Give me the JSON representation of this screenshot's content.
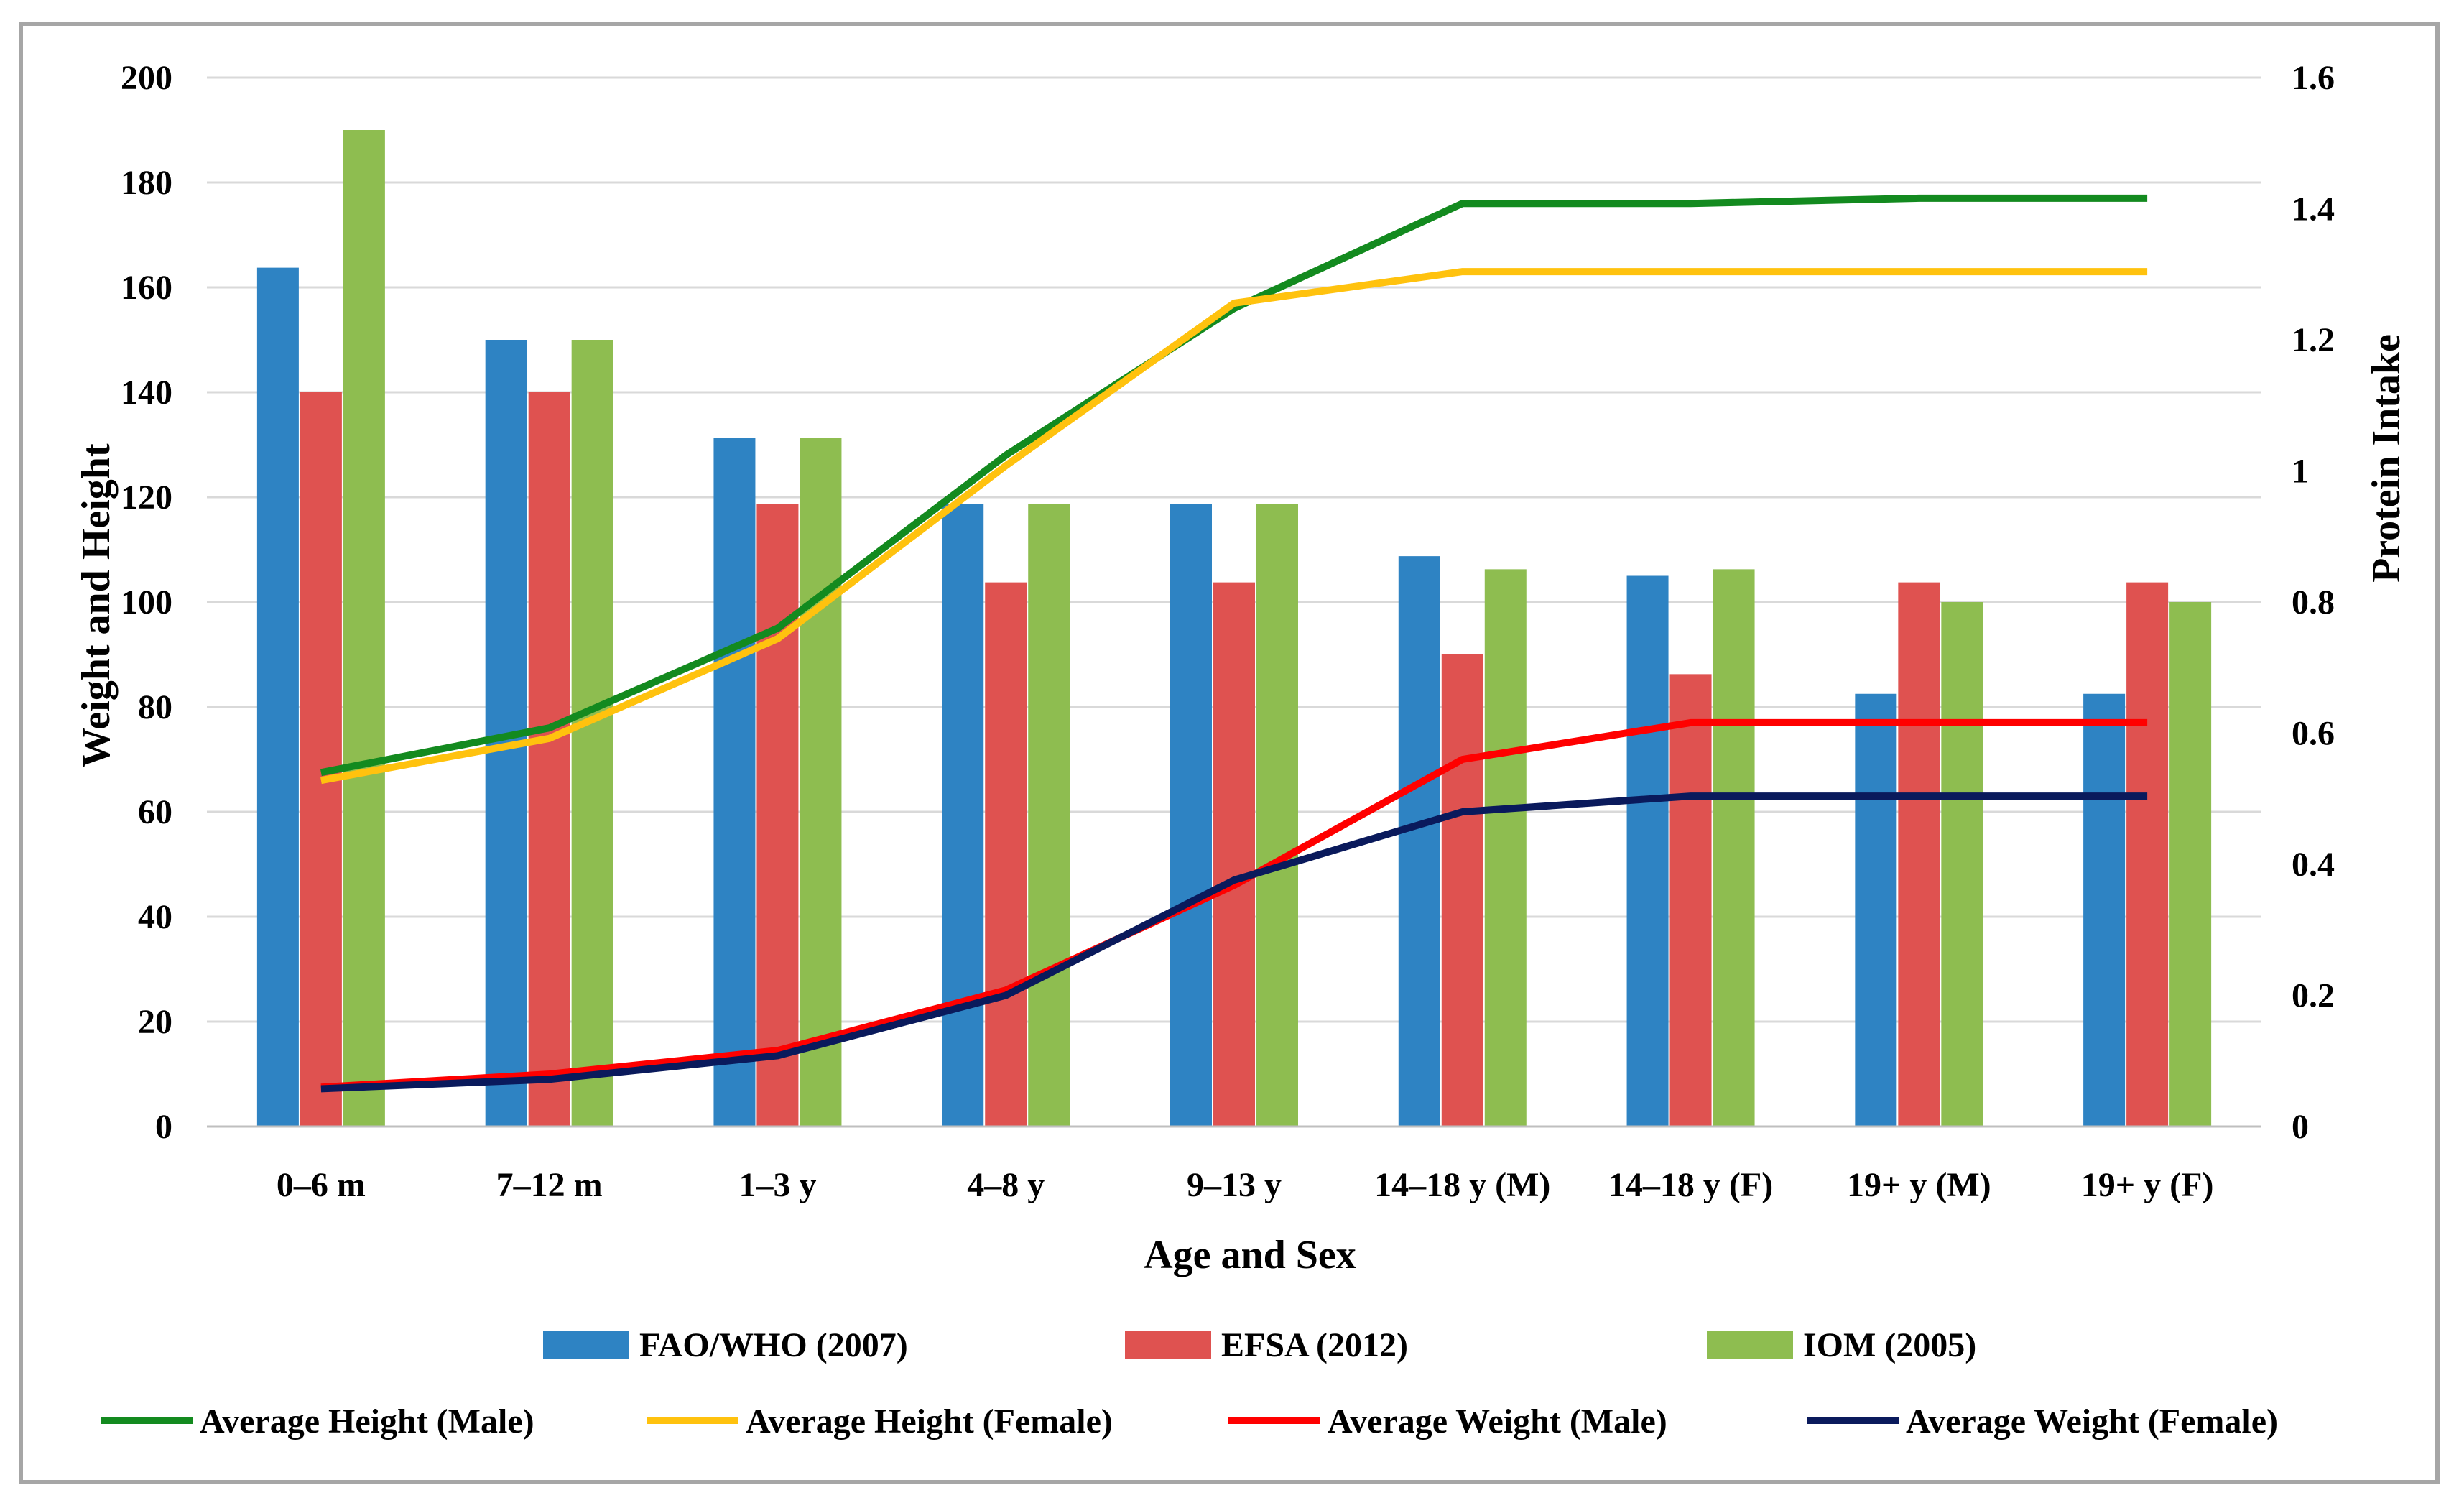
{
  "chart_data": {
    "type": "bar",
    "categories": [
      "0–6 m",
      "7–12 m",
      "1–3 y",
      "4–8 y",
      "9–13 y",
      "14–18 y (M)",
      "14–18 y (F)",
      "19+ y (M)",
      "19+ y (F)"
    ],
    "xlabel": "Age and Sex",
    "ylabel": "Weight and Height",
    "y2label": "Protein Intake",
    "ylim": [
      0,
      200
    ],
    "y2lim": [
      0,
      1.6
    ],
    "yticks": [
      "0",
      "20",
      "40",
      "60",
      "80",
      "100",
      "120",
      "140",
      "160",
      "180",
      "200"
    ],
    "y2ticks": [
      "0",
      "0.2",
      "0.4",
      "0.6",
      "0.8",
      "1",
      "1.2",
      "1.4",
      "1.6"
    ],
    "grid": true,
    "legend_position": "bottom",
    "bar_series": [
      {
        "name": "FAO/WHO (2007)",
        "axis": "right",
        "color": "#2e83c3",
        "values": [
          1.31,
          1.2,
          1.05,
          0.95,
          0.95,
          0.87,
          0.84,
          0.66,
          0.66
        ]
      },
      {
        "name": "EFSA (2012)",
        "axis": "right",
        "color": "#df5250",
        "values": [
          1.12,
          1.12,
          0.95,
          0.83,
          0.83,
          0.72,
          0.69,
          0.83,
          0.83
        ]
      },
      {
        "name": "IOM (2005)",
        "axis": "right",
        "color": "#8ebd50",
        "values": [
          1.52,
          1.2,
          1.05,
          0.95,
          0.95,
          0.85,
          0.85,
          0.8,
          0.8
        ]
      }
    ],
    "line_series": [
      {
        "name": "Average Height (Male)",
        "axis": "left",
        "color": "#138a1f",
        "values": [
          67.5,
          76,
          95,
          128,
          156,
          176,
          176,
          177,
          177
        ]
      },
      {
        "name": "Average Height (Female)",
        "axis": "left",
        "color": "#ffc20e",
        "values": [
          66,
          74,
          93,
          126,
          157,
          163,
          163,
          163,
          163
        ]
      },
      {
        "name": "Average Weight (Male)",
        "axis": "left",
        "color": "#ff0000",
        "values": [
          7.5,
          10,
          14.5,
          26,
          46,
          70,
          77,
          77,
          77
        ]
      },
      {
        "name": "Average Weight (Female)",
        "axis": "left",
        "color": "#0a1a5c",
        "values": [
          7.2,
          9,
          13.5,
          25,
          47,
          60,
          63,
          63,
          63
        ]
      }
    ]
  }
}
